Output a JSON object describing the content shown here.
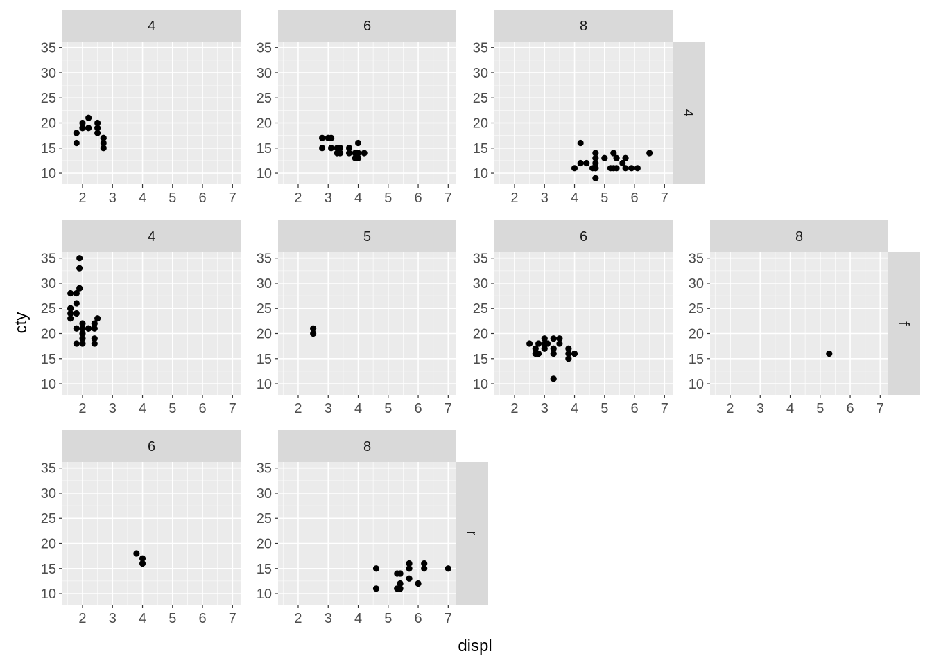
{
  "chart_data": {
    "type": "scatter",
    "xlabel": "displ",
    "ylabel": "cty",
    "xlim": [
      1.33,
      7.27
    ],
    "ylim": [
      7.8,
      36.2
    ],
    "x_ticks": [
      "2",
      "3",
      "4",
      "5",
      "6",
      "7"
    ],
    "y_ticks": [
      "10",
      "15",
      "20",
      "25",
      "30",
      "35"
    ],
    "panel_color": "#ebebeb",
    "strip_color": "#d9d9d9",
    "point_color": "#000000",
    "rows": [
      {
        "label": "4",
        "panels": [
          {
            "col_label": "4",
            "x": [
              1.8,
              1.8,
              2.0,
              2.0,
              2.0,
              2.2,
              2.2,
              2.5,
              2.5,
              2.5,
              2.7,
              2.7,
              2.7
            ],
            "y": [
              18,
              16,
              20,
              19,
              19,
              21,
              19,
              20,
              19,
              18,
              17,
              16,
              15
            ]
          },
          {
            "col_label": "6",
            "x": [
              2.8,
              2.8,
              3.0,
              3.1,
              3.1,
              3.3,
              3.3,
              3.4,
              3.4,
              3.7,
              3.7,
              3.9,
              3.9,
              4.0,
              4.0,
              4.0,
              4.2
            ],
            "y": [
              17,
              15,
              17,
              17,
              15,
              15,
              14,
              15,
              14,
              15,
              14,
              14,
              13,
              16,
              14,
              13,
              14
            ]
          },
          {
            "col_label": "8",
            "x": [
              4.0,
              4.2,
              4.2,
              4.4,
              4.6,
              4.7,
              4.7,
              4.7,
              4.7,
              4.7,
              4.7,
              5.0,
              5.2,
              5.3,
              5.3,
              5.4,
              5.4,
              5.6,
              5.7,
              5.7,
              5.9,
              6.1,
              6.5
            ],
            "y": [
              11,
              16,
              12,
              12,
              11,
              13,
              11,
              14,
              12,
              11,
              9,
              13,
              11,
              14,
              11,
              13,
              11,
              12,
              13,
              11,
              11,
              11,
              14
            ]
          },
          null
        ]
      },
      {
        "label": "f",
        "panels": [
          {
            "col_label": "4",
            "x": [
              1.6,
              1.6,
              1.6,
              1.6,
              1.6,
              1.8,
              1.8,
              1.8,
              1.8,
              1.8,
              1.9,
              1.9,
              1.9,
              2.0,
              2.0,
              2.0,
              2.0,
              2.0,
              2.2,
              2.2,
              2.4,
              2.4,
              2.4,
              2.4,
              2.5
            ],
            "y": [
              28,
              25,
              24,
              23,
              25,
              28,
              26,
              24,
              21,
              18,
              35,
              33,
              29,
              22,
              21,
              20,
              19,
              18,
              21,
              21,
              21,
              19,
              18,
              22,
              23
            ]
          },
          {
            "col_label": "5",
            "x": [
              2.5,
              2.5
            ],
            "y": [
              21,
              20
            ]
          },
          {
            "col_label": "6",
            "x": [
              2.5,
              2.7,
              2.7,
              2.8,
              2.8,
              3.0,
              3.0,
              3.0,
              3.1,
              3.3,
              3.3,
              3.3,
              3.3,
              3.5,
              3.5,
              3.8,
              3.8,
              3.8,
              4.0
            ],
            "y": [
              18,
              16,
              17,
              18,
              16,
              19,
              18,
              17,
              18,
              19,
              17,
              16,
              11,
              19,
              18,
              17,
              16,
              15,
              16
            ]
          },
          {
            "col_label": "8",
            "x": [
              5.3
            ],
            "y": [
              16
            ]
          }
        ]
      },
      {
        "label": "r",
        "panels": [
          {
            "col_label": "6",
            "x": [
              3.8,
              4.0,
              4.0
            ],
            "y": [
              18,
              17,
              16
            ]
          },
          {
            "col_label": "8",
            "x": [
              4.6,
              4.6,
              5.3,
              5.3,
              5.3,
              5.4,
              5.4,
              5.4,
              5.7,
              5.7,
              5.7,
              6.0,
              6.2,
              6.2,
              7.0
            ],
            "y": [
              15,
              11,
              14,
              11,
              11,
              14,
              12,
              11,
              16,
              15,
              13,
              12,
              16,
              15,
              15
            ]
          },
          null,
          null
        ]
      }
    ]
  }
}
